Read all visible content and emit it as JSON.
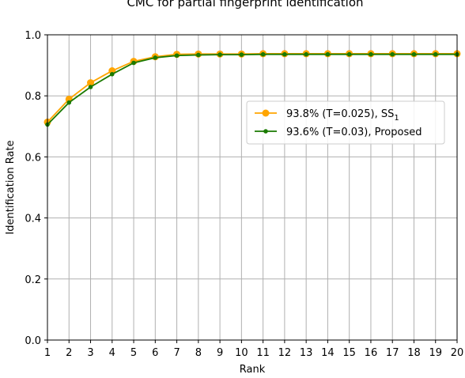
{
  "chart_data": {
    "type": "line",
    "title": "CMC for partial fingerprint identification",
    "xlabel": "Rank",
    "ylabel": "Identification Rate",
    "xlim": [
      1,
      20
    ],
    "ylim": [
      0.0,
      1.0
    ],
    "x": [
      1,
      2,
      3,
      4,
      5,
      6,
      7,
      8,
      9,
      10,
      11,
      12,
      13,
      14,
      15,
      16,
      17,
      18,
      19,
      20
    ],
    "xticks": [
      "1",
      "2",
      "3",
      "4",
      "5",
      "6",
      "7",
      "8",
      "9",
      "10",
      "11",
      "12",
      "13",
      "14",
      "15",
      "16",
      "17",
      "18",
      "19",
      "20"
    ],
    "yticks": [
      "0.0",
      "0.2",
      "0.4",
      "0.6",
      "0.8",
      "1.0"
    ],
    "grid": true,
    "legend_position": "center-right",
    "series": [
      {
        "name": "93.8% (T=0.025), SS",
        "name_subscript": "1",
        "color": "#FFA500",
        "marker": "circle-large",
        "values": [
          0.714,
          0.789,
          0.843,
          0.882,
          0.913,
          0.928,
          0.936,
          0.937,
          0.937,
          0.937,
          0.938,
          0.938,
          0.938,
          0.938,
          0.938,
          0.938,
          0.938,
          0.938,
          0.938,
          0.938
        ]
      },
      {
        "name": "93.6% (T=0.03), Proposed",
        "color": "#1a7a00",
        "marker": "circle-small",
        "values": [
          0.706,
          0.778,
          0.829,
          0.871,
          0.908,
          0.925,
          0.932,
          0.934,
          0.935,
          0.935,
          0.936,
          0.936,
          0.936,
          0.936,
          0.936,
          0.936,
          0.936,
          0.936,
          0.936,
          0.936
        ]
      }
    ]
  }
}
